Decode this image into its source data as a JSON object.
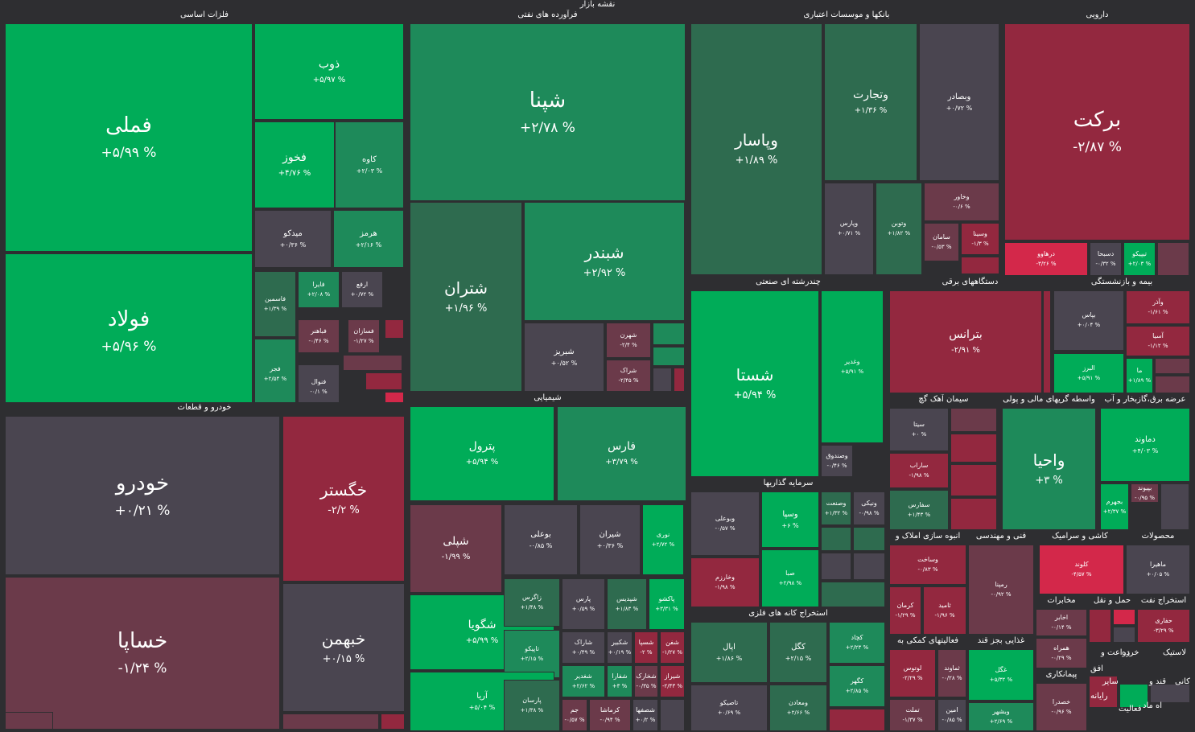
{
  "title": "نقشه بازار",
  "colors": {
    "background": "#2e2e31",
    "strong_green": "#00ac58",
    "mid_green": "#1e8a5a",
    "weak_green": "#2e6b4f",
    "neutral": "#4a4550",
    "weak_red": "#6b3a4a",
    "mid_red": "#93283f",
    "strong_red": "#d3284a"
  },
  "sectors": [
    {
      "id": "basic-metals",
      "title": "فلزات اساسی",
      "tiles": [
        {
          "symbol": "فملی",
          "change": "+۵/۹۹ %",
          "color": "strong_green"
        },
        {
          "symbol": "فولاد",
          "change": "+۵/۹۶ %",
          "color": "strong_green"
        },
        {
          "symbol": "ذوب",
          "change": "+۵/۹۷ %",
          "color": "strong_green"
        },
        {
          "symbol": "فخوز",
          "change": "+۴/۷۶ %",
          "color": "strong_green"
        },
        {
          "symbol": "کاوه",
          "change": "+۲/۰۳ %",
          "color": "mid_green"
        },
        {
          "symbol": "میدکو",
          "change": "+۰/۳۶ %",
          "color": "neutral"
        },
        {
          "symbol": "هرمز",
          "change": "+۲/۱۶ %",
          "color": "mid_green"
        },
        {
          "symbol": "فاسمین",
          "change": "+۱/۳۹ %",
          "color": "weak_green"
        },
        {
          "symbol": "فایرا",
          "change": "+۲/۰۸ %",
          "color": "mid_green"
        },
        {
          "symbol": "ارفع",
          "change": "+۰/۷۲ %",
          "color": "neutral"
        },
        {
          "symbol": "فباهنر",
          "change": "-۰/۴۶ %",
          "color": "weak_red"
        },
        {
          "symbol": "فسازان",
          "change": "-۱/۲۷ %",
          "color": "weak_red"
        },
        {
          "symbol": "فجر",
          "change": "+۲/۵۴ %",
          "color": "mid_green"
        },
        {
          "symbol": "فنوال",
          "change": "-۰/۱ %",
          "color": "neutral"
        }
      ]
    },
    {
      "id": "refined-oil",
      "title": "فرآورده های نفتی",
      "tiles": [
        {
          "symbol": "شپنا",
          "change": "+۲/۷۸ %",
          "color": "mid_green"
        },
        {
          "symbol": "شتران",
          "change": "+۱/۹۶ %",
          "color": "weak_green"
        },
        {
          "symbol": "شبندر",
          "change": "+۲/۹۲ %",
          "color": "mid_green"
        },
        {
          "symbol": "شبریز",
          "change": "+۰/۵۲ %",
          "color": "neutral"
        },
        {
          "symbol": "شهرن",
          "change": "-۲/۴ %",
          "color": "weak_red"
        },
        {
          "symbol": "شراک",
          "change": "-۲/۴۵ %",
          "color": "weak_red"
        }
      ]
    },
    {
      "id": "banks",
      "title": "بانکها و موسسات اعتباری",
      "tiles": [
        {
          "symbol": "وپاسار",
          "change": "+۱/۸۹ %",
          "color": "weak_green"
        },
        {
          "symbol": "وتجارت",
          "change": "+۱/۳۶ %",
          "color": "weak_green"
        },
        {
          "symbol": "وبصادر",
          "change": "+۰/۷۲ %",
          "color": "neutral"
        },
        {
          "symbol": "وپارس",
          "change": "+۰/۷۱ %",
          "color": "neutral"
        },
        {
          "symbol": "وتوبن",
          "change": "+۱/۸۲ %",
          "color": "weak_green"
        },
        {
          "symbol": "وخاور",
          "change": "-۰/۶ %",
          "color": "weak_red"
        },
        {
          "symbol": "سامان",
          "change": "-۰/۵۳ %",
          "color": "weak_red"
        },
        {
          "symbol": "وسینا",
          "change": "-۱/۳ %",
          "color": "mid_red"
        }
      ]
    },
    {
      "id": "pharma",
      "title": "دارویی",
      "tiles": [
        {
          "symbol": "برکت",
          "change": "-۲/۸۷ %",
          "color": "mid_red"
        },
        {
          "symbol": "درهاوو",
          "change": "-۳/۲۶ %",
          "color": "strong_red"
        },
        {
          "symbol": "دسبحا",
          "change": "-۰/۳۲ %",
          "color": "neutral"
        },
        {
          "symbol": "تیپیکو",
          "change": "+۲/۰۳ %",
          "color": "strong_green"
        }
      ]
    },
    {
      "id": "auto",
      "title": "خودرو و قطعات",
      "tiles": [
        {
          "symbol": "خودرو",
          "change": "+۰/۲۱ %",
          "color": "neutral"
        },
        {
          "symbol": "خگستر",
          "change": "-۲/۲ %",
          "color": "mid_red"
        },
        {
          "symbol": "خساپا",
          "change": "-۱/۲۴ %",
          "color": "weak_red"
        },
        {
          "symbol": "خبهمن",
          "change": "+۰/۱۵ %",
          "color": "neutral"
        }
      ]
    },
    {
      "id": "chemicals",
      "title": "شیمیایی",
      "tiles": [
        {
          "symbol": "پترول",
          "change": "+۵/۹۴ %",
          "color": "strong_green"
        },
        {
          "symbol": "فارس",
          "change": "+۳/۷۹ %",
          "color": "mid_green"
        },
        {
          "symbol": "شپلی",
          "change": "-۱/۹۹ %",
          "color": "weak_red"
        },
        {
          "symbol": "بوعلی",
          "change": "-۰/۸۵ %",
          "color": "neutral"
        },
        {
          "symbol": "شیران",
          "change": "+۰/۳۶ %",
          "color": "neutral"
        },
        {
          "symbol": "نوری",
          "change": "+۲/۷۲ %",
          "color": "strong_green"
        },
        {
          "symbol": "شگویا",
          "change": "+۵/۹۹ %",
          "color": "strong_green"
        },
        {
          "symbol": "زاگرس",
          "change": "+۱/۴۸ %",
          "color": "weak_green"
        },
        {
          "symbol": "پارس",
          "change": "+۰/۵۹ %",
          "color": "neutral"
        },
        {
          "symbol": "شپدیس",
          "change": "+۱/۸۳ %",
          "color": "weak_green"
        },
        {
          "symbol": "پاکشو",
          "change": "+۳/۳۱ %",
          "color": "strong_green"
        },
        {
          "symbol": "تاپیکو",
          "change": "+۲/۱۵ %",
          "color": "mid_green"
        },
        {
          "symbol": "شاراک",
          "change": "+۰/۴۹ %",
          "color": "neutral"
        },
        {
          "symbol": "شکبیر",
          "change": "+۰/۱۹ %",
          "color": "neutral"
        },
        {
          "symbol": "شسپا",
          "change": "-۲ %",
          "color": "mid_red"
        },
        {
          "symbol": "شفن",
          "change": "-۱/۲۷ %",
          "color": "mid_red"
        },
        {
          "symbol": "آریا",
          "change": "+۵/۰۴ %",
          "color": "strong_green"
        },
        {
          "symbol": "پارسان",
          "change": "+۱/۳۸ %",
          "color": "weak_green"
        },
        {
          "symbol": "شغدیر",
          "change": "+۲/۶۲ %",
          "color": "mid_green"
        },
        {
          "symbol": "شفارا",
          "change": "+۳ %",
          "color": "mid_green"
        },
        {
          "symbol": "شخارک",
          "change": "-۰/۳۵ %",
          "color": "weak_red"
        },
        {
          "symbol": "شیراز",
          "change": "-۲/۴۳ %",
          "color": "mid_red"
        },
        {
          "symbol": "جم",
          "change": "-۰/۵۷ %",
          "color": "weak_red"
        },
        {
          "symbol": "کرماشا",
          "change": "-۰/۹۴ %",
          "color": "weak_red"
        },
        {
          "symbol": "شصفها",
          "change": "+۰/۲ %",
          "color": "neutral"
        }
      ]
    },
    {
      "id": "multi-industry",
      "title": "چندرشته ای صنعتی",
      "tiles": [
        {
          "symbol": "شستا",
          "change": "+۵/۹۴ %",
          "color": "strong_green"
        },
        {
          "symbol": "وغدیر",
          "change": "+۵/۹۱ %",
          "color": "strong_green"
        },
        {
          "symbol": "وصندوق",
          "change": "-۰/۴۶ %",
          "color": "neutral"
        }
      ]
    },
    {
      "id": "electrical",
      "title": "دستگاههای برقی",
      "tiles": [
        {
          "symbol": "بترانس",
          "change": "-۲/۹۱ %",
          "color": "mid_red"
        }
      ]
    },
    {
      "id": "insurance",
      "title": "بیمه و بازنشستگی",
      "tiles": [
        {
          "symbol": "بپاس",
          "change": "+۰/۰۴ %",
          "color": "neutral"
        },
        {
          "symbol": "وآذر",
          "change": "-۱/۶۱ %",
          "color": "mid_red"
        },
        {
          "symbol": "آسیا",
          "change": "-۱/۱۲ %",
          "color": "mid_red"
        },
        {
          "symbol": "البرز",
          "change": "+۵/۹۱ %",
          "color": "strong_green"
        },
        {
          "symbol": "ما",
          "change": "+۱/۸۹ %",
          "color": "strong_green"
        }
      ]
    },
    {
      "id": "cement",
      "title": "سیمان آهک گچ",
      "tiles": [
        {
          "symbol": "سیتا",
          "change": "+۰ %",
          "color": "neutral"
        },
        {
          "symbol": "ساراب",
          "change": "-۱/۹۸ %",
          "color": "mid_red"
        },
        {
          "symbol": "سفارس",
          "change": "+۱/۴۳ %",
          "color": "weak_green"
        }
      ]
    },
    {
      "id": "finance",
      "title": "واسطه گریهای مالی و پولی",
      "tiles": [
        {
          "symbol": "واحیا",
          "change": "+۳ %",
          "color": "mid_green"
        }
      ]
    },
    {
      "id": "utilities",
      "title": "عرضه برق،گازبخار و آب",
      "tiles": [
        {
          "symbol": "دماوند",
          "change": "+۴/۰۳ %",
          "color": "strong_green"
        },
        {
          "symbol": "بجهرم",
          "change": "+۲/۳۷ %",
          "color": "strong_green"
        },
        {
          "symbol": "بپیوند",
          "change": "-۰/۹۵ %",
          "color": "weak_red"
        }
      ]
    },
    {
      "id": "investment",
      "title": "سرمایه گذاریها",
      "tiles": [
        {
          "symbol": "وبوعلی",
          "change": "-۰/۵۷ %",
          "color": "neutral"
        },
        {
          "symbol": "وسپا",
          "change": "+۶ %",
          "color": "strong_green"
        },
        {
          "symbol": "وصنعت",
          "change": "+۱/۳۲ %",
          "color": "weak_green"
        },
        {
          "symbol": "ونیکی",
          "change": "-۰/۹۸ %",
          "color": "neutral"
        },
        {
          "symbol": "وخارزم",
          "change": "-۱/۹۸ %",
          "color": "mid_red"
        },
        {
          "symbol": "صبا",
          "change": "+۲/۹۸ %",
          "color": "strong_green"
        }
      ]
    },
    {
      "id": "metal-mining",
      "title": "استخراج کانه های فلزی",
      "tiles": [
        {
          "symbol": "اپال",
          "change": "+۱/۸۶ %",
          "color": "weak_green"
        },
        {
          "symbol": "کگل",
          "change": "+۲/۱۵ %",
          "color": "weak_green"
        },
        {
          "symbol": "کچاد",
          "change": "+۲/۲۳ %",
          "color": "mid_green"
        },
        {
          "symbol": "تاصیکو",
          "change": "+۰/۶۹ %",
          "color": "neutral"
        },
        {
          "symbol": "ومعادن",
          "change": "+۲/۶۶ %",
          "color": "weak_green"
        },
        {
          "symbol": "کگهر",
          "change": "+۲/۸۵ %",
          "color": "mid_green"
        }
      ]
    },
    {
      "id": "real-estate",
      "title": "انبوه سازی املاک و",
      "tiles": [
        {
          "symbol": "وساخت",
          "change": "-۰/۸۳ %",
          "color": "mid_red"
        },
        {
          "symbol": "کرمان",
          "change": "-۱/۲۹ %",
          "color": "mid_red"
        },
        {
          "symbol": "ثامید",
          "change": "-۱/۹۶ %",
          "color": "mid_red"
        }
      ]
    },
    {
      "id": "engineering",
      "title": "فنی و مهندسی",
      "tiles": [
        {
          "symbol": "رمپنا",
          "change": "-۰/۹۲ %",
          "color": "weak_red"
        }
      ]
    },
    {
      "id": "tiles",
      "title": "کاشی و سرامیک",
      "tiles": [
        {
          "symbol": "کلوند",
          "change": "-۴/۵۷ %",
          "color": "strong_red"
        }
      ]
    },
    {
      "id": "products",
      "title": "محصولات",
      "tiles": [
        {
          "symbol": "ماهیرا",
          "change": "+۰/۰۵ %",
          "color": "neutral"
        }
      ]
    },
    {
      "id": "telecom",
      "title": "مخابرات",
      "tiles": [
        {
          "symbol": "اخابر",
          "change": "-۰/۱۴ %",
          "color": "weak_red"
        },
        {
          "symbol": "همراه",
          "change": "-۰/۲۹ %",
          "color": "weak_red"
        }
      ]
    },
    {
      "id": "transport",
      "title": "حمل و نقل",
      "tiles": []
    },
    {
      "id": "oil-extraction",
      "title": "استخراج نفت",
      "tiles": [
        {
          "symbol": "حفاری",
          "change": "-۳/۲۹ %",
          "color": "mid_red"
        }
      ]
    },
    {
      "id": "auxiliary",
      "title": "فعالیتهای کمکی به",
      "tiles": [
        {
          "symbol": "لوتوس",
          "change": "-۲/۲۹ %",
          "color": "mid_red"
        },
        {
          "symbol": "ثماوند",
          "change": "-۰/۲۸ %",
          "color": "weak_red"
        },
        {
          "symbol": "تملت",
          "change": "-۱/۳۷ %",
          "color": "weak_red"
        },
        {
          "symbol": "امین",
          "change": "-۰/۸۵ %",
          "color": "neutral"
        }
      ]
    },
    {
      "id": "food",
      "title": "غذایی بجز قند",
      "tiles": [
        {
          "symbol": "غگل",
          "change": "+۵/۳۲ %",
          "color": "strong_green"
        },
        {
          "symbol": "وبشهر",
          "change": "+۲/۶۹ %",
          "color": "mid_green"
        }
      ]
    },
    {
      "id": "contracting",
      "title": "پیمانکاری",
      "tiles": [
        {
          "symbol": "خصدرا",
          "change": "-۰/۹۶ %",
          "color": "weak_red"
        }
      ]
    },
    {
      "id": "misc",
      "title": "",
      "tiles": []
    }
  ],
  "small_labels": [
    "زراعت و",
    "خرده",
    "لاستیک",
    "افق",
    "قند و",
    "سایر",
    "کانی",
    "رایانه",
    "فعالیت",
    "اه ماد"
  ]
}
